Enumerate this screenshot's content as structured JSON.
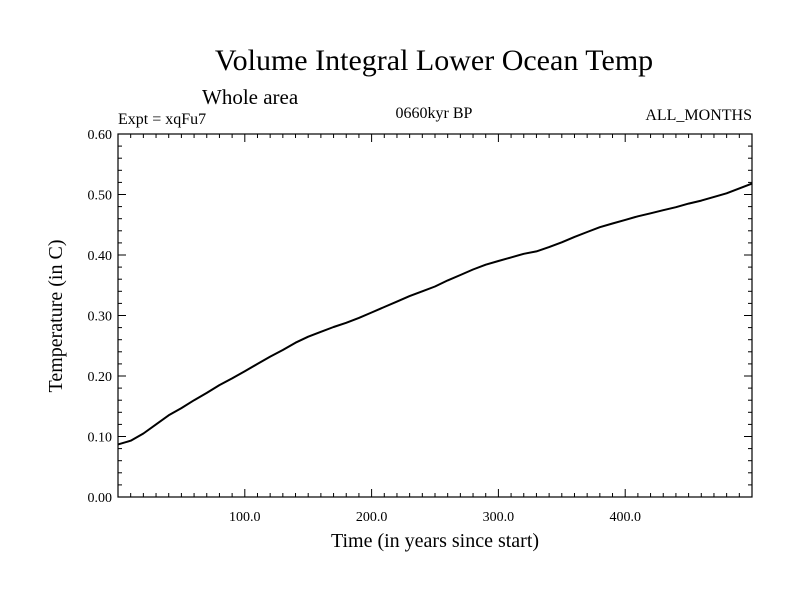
{
  "chart_data": {
    "type": "line",
    "title": "Volume Integral Lower Ocean Temp",
    "subtitle": "Whole area",
    "expt_label": "Expt = xqFu7",
    "period_label": "0660kyr BP",
    "months_label": "ALL_MONTHS",
    "xlabel": "Time (in years since start)",
    "ylabel": "Temperature (in C)",
    "xlim": [
      0,
      500
    ],
    "ylim": [
      0,
      0.6
    ],
    "x_ticks": [
      "100.0",
      "200.0",
      "300.0",
      "400.0"
    ],
    "x_tick_values": [
      100,
      200,
      300,
      400
    ],
    "y_ticks": [
      "0.00",
      "0.10",
      "0.20",
      "0.30",
      "0.40",
      "0.50",
      "0.60"
    ],
    "y_tick_values": [
      0,
      0.1,
      0.2,
      0.3,
      0.4,
      0.5,
      0.6
    ],
    "grid": false,
    "series": [
      {
        "name": "Temperature",
        "x": [
          0,
          10,
          20,
          30,
          40,
          50,
          60,
          70,
          80,
          90,
          100,
          110,
          120,
          130,
          140,
          150,
          160,
          170,
          180,
          190,
          200,
          210,
          220,
          230,
          240,
          250,
          260,
          270,
          280,
          290,
          300,
          310,
          320,
          330,
          340,
          350,
          360,
          370,
          380,
          390,
          400,
          410,
          420,
          430,
          440,
          450,
          460,
          470,
          480,
          490,
          500
        ],
        "values": [
          0.087,
          0.093,
          0.105,
          0.12,
          0.135,
          0.147,
          0.16,
          0.172,
          0.185,
          0.196,
          0.208,
          0.22,
          0.232,
          0.243,
          0.255,
          0.265,
          0.273,
          0.281,
          0.288,
          0.296,
          0.305,
          0.314,
          0.323,
          0.332,
          0.34,
          0.348,
          0.358,
          0.367,
          0.376,
          0.384,
          0.39,
          0.396,
          0.402,
          0.406,
          0.413,
          0.421,
          0.43,
          0.438,
          0.446,
          0.452,
          0.458,
          0.464,
          0.469,
          0.474,
          0.479,
          0.485,
          0.49,
          0.496,
          0.502,
          0.51,
          0.518
        ]
      }
    ]
  }
}
